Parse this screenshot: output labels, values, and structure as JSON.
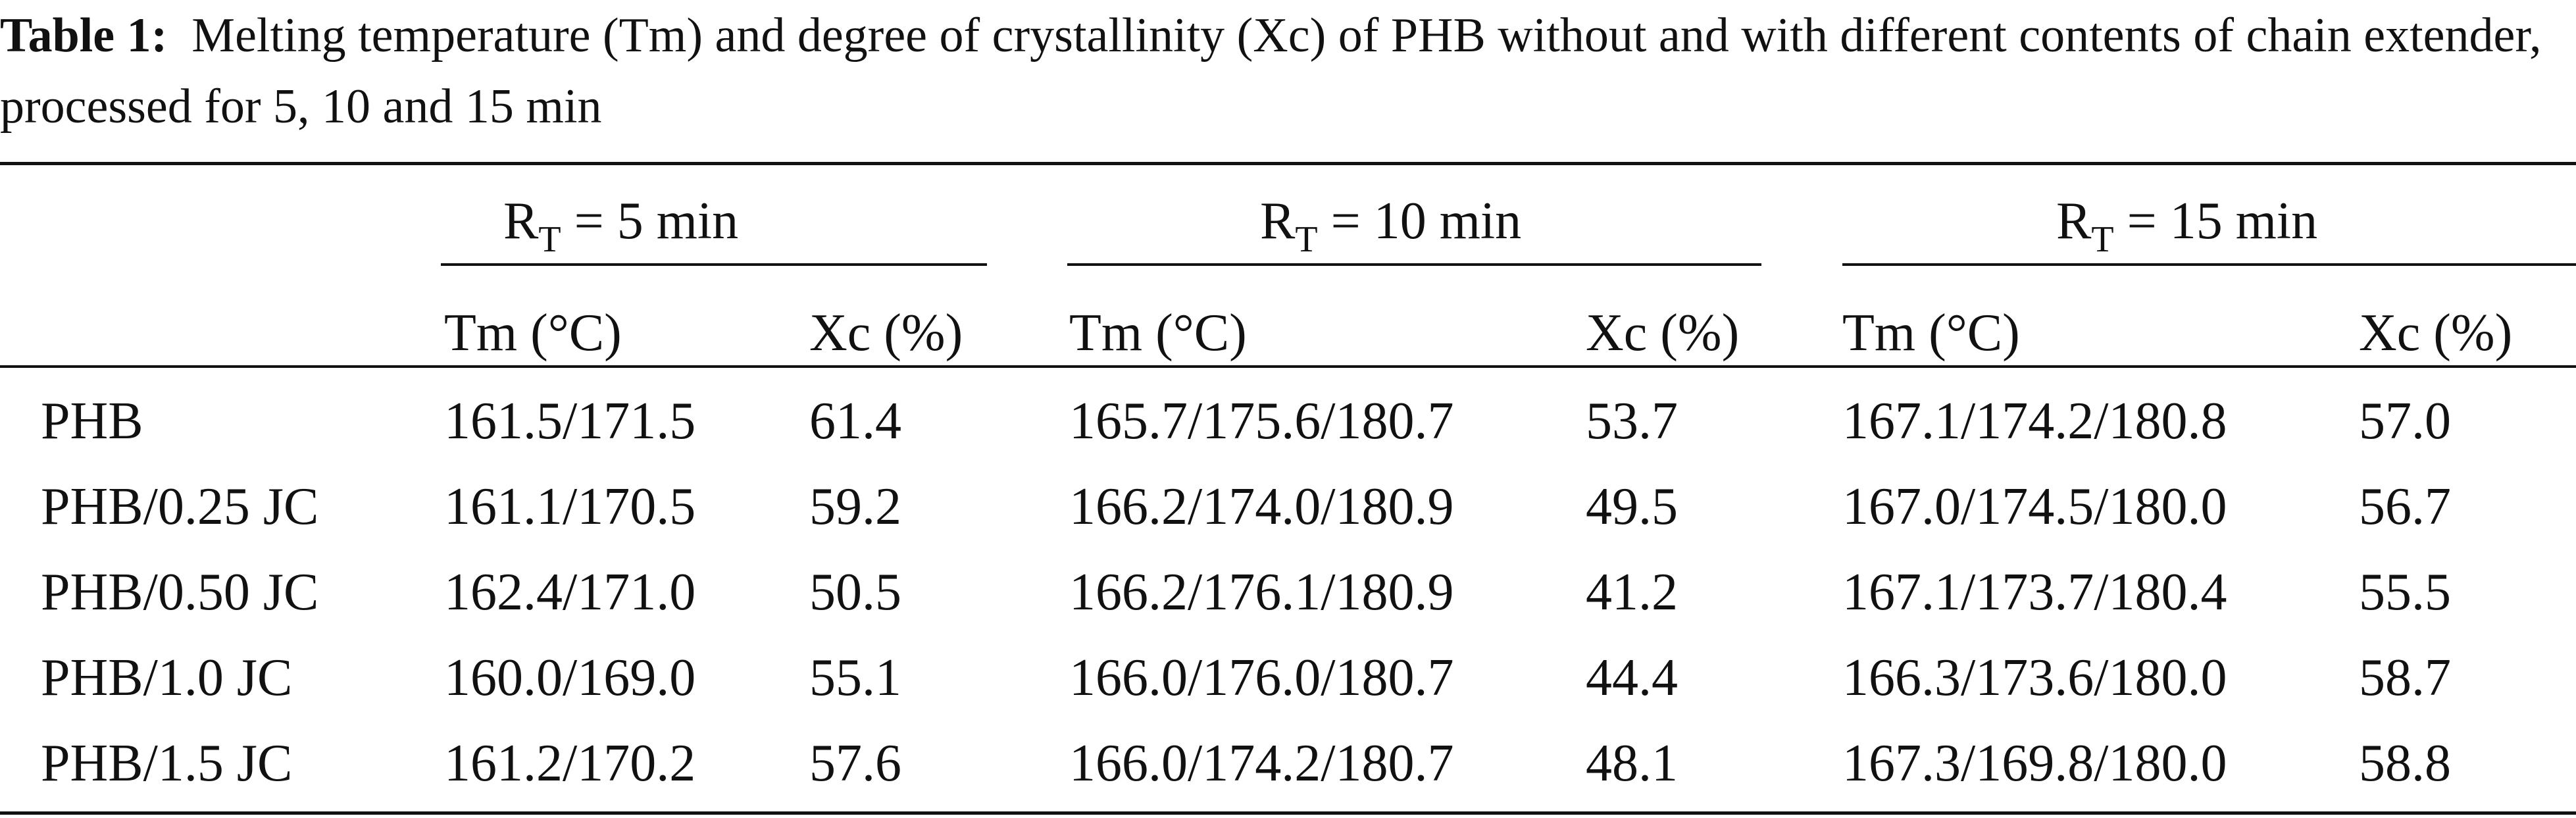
{
  "caption": {
    "label": "Table 1:",
    "text": "Melting temperature (Tm) and degree of crystallinity (Xc) of PHB without and with different contents of chain extender, processed for 5, 10 and 15 min"
  },
  "groups": [
    {
      "main": "R",
      "subscript": "T",
      "rest": " = 5 min"
    },
    {
      "main": "R",
      "subscript": "T",
      "rest": " = 10 min"
    },
    {
      "main": "R",
      "subscript": "T",
      "rest": " = 15 min"
    }
  ],
  "column_headers": [
    "Tm (°C)",
    "Xc (%)",
    "Tm (°C)",
    "Xc (%)",
    "Tm (°C)",
    "Xc (%)"
  ],
  "rows": [
    {
      "sample": "PHB",
      "values": [
        "161.5/171.5",
        "61.4",
        "165.7/175.6/180.7",
        "53.7",
        "167.1/174.2/180.8",
        "57.0"
      ]
    },
    {
      "sample": "PHB/0.25 JC",
      "values": [
        "161.1/170.5",
        "59.2",
        "166.2/174.0/180.9",
        "49.5",
        "167.0/174.5/180.0",
        "56.7"
      ]
    },
    {
      "sample": "PHB/0.50 JC",
      "values": [
        "162.4/171.0",
        "50.5",
        "166.2/176.1/180.9",
        "41.2",
        "167.1/173.7/180.4",
        "55.5"
      ]
    },
    {
      "sample": "PHB/1.0 JC",
      "values": [
        "160.0/169.0",
        "55.1",
        "166.0/176.0/180.7",
        "44.4",
        "166.3/173.6/180.0",
        "58.7"
      ]
    },
    {
      "sample": "PHB/1.5 JC",
      "values": [
        "161.2/170.2",
        "57.6",
        "166.0/174.2/180.7",
        "48.1",
        "167.3/169.8/180.0",
        "58.8"
      ]
    }
  ]
}
